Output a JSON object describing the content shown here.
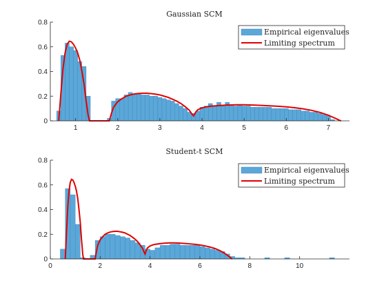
{
  "chart_data": [
    {
      "type": "bar",
      "title": "Gaussian SCM",
      "xlim": [
        0.4,
        7.5
      ],
      "ylim": [
        0,
        0.8
      ],
      "xticks": [
        1,
        2,
        3,
        4,
        5,
        6,
        7
      ],
      "yticks": [
        0,
        0.2,
        0.4,
        0.6,
        0.8
      ],
      "legend": {
        "position": "top-right",
        "entries": [
          "Empirical eigenvalues",
          "Limiting spectrum"
        ]
      },
      "bin_width": 0.1,
      "series": [
        {
          "name": "Empirical eigenvalues",
          "x": [
            0.6,
            0.7,
            0.8,
            0.9,
            1.0,
            1.1,
            1.2,
            1.3,
            1.8,
            1.9,
            2.0,
            2.1,
            2.2,
            2.3,
            2.4,
            2.5,
            2.6,
            2.7,
            2.8,
            2.9,
            3.0,
            3.1,
            3.2,
            3.3,
            3.4,
            3.5,
            3.6,
            3.7,
            3.8,
            3.9,
            4.0,
            4.1,
            4.2,
            4.3,
            4.4,
            4.5,
            4.6,
            4.7,
            4.8,
            4.9,
            5.0,
            5.1,
            5.2,
            5.3,
            5.4,
            5.5,
            5.6,
            5.7,
            5.8,
            5.9,
            6.0,
            6.1,
            6.2,
            6.3,
            6.4,
            6.5,
            6.6,
            6.7,
            6.8,
            6.9,
            7.0,
            7.1
          ],
          "values": [
            0.08,
            0.53,
            0.63,
            0.6,
            0.57,
            0.48,
            0.44,
            0.2,
            0.02,
            0.16,
            0.18,
            0.18,
            0.21,
            0.23,
            0.22,
            0.22,
            0.21,
            0.21,
            0.2,
            0.2,
            0.19,
            0.18,
            0.17,
            0.16,
            0.14,
            0.12,
            0.1,
            0.07,
            0.06,
            0.08,
            0.11,
            0.12,
            0.14,
            0.12,
            0.15,
            0.12,
            0.15,
            0.13,
            0.12,
            0.13,
            0.12,
            0.12,
            0.11,
            0.11,
            0.11,
            0.11,
            0.11,
            0.1,
            0.1,
            0.1,
            0.1,
            0.09,
            0.09,
            0.09,
            0.08,
            0.08,
            0.07,
            0.07,
            0.06,
            0.05,
            0.04,
            0.01
          ]
        },
        {
          "name": "Limiting spectrum",
          "x": [
            0.6,
            0.65,
            0.7,
            0.75,
            0.8,
            0.85,
            0.9,
            0.95,
            1.0,
            1.05,
            1.1,
            1.15,
            1.2,
            1.25,
            1.3,
            1.33,
            1.8,
            1.85,
            1.9,
            2.0,
            2.1,
            2.2,
            2.3,
            2.4,
            2.5,
            2.6,
            2.7,
            2.8,
            2.9,
            3.0,
            3.1,
            3.2,
            3.3,
            3.4,
            3.5,
            3.6,
            3.7,
            3.75,
            3.8,
            3.85,
            3.9,
            4.0,
            4.1,
            4.2,
            4.3,
            4.4,
            4.5,
            4.6,
            4.7,
            4.8,
            4.9,
            5.0,
            5.2,
            5.4,
            5.6,
            5.8,
            6.0,
            6.2,
            6.4,
            6.6,
            6.8,
            7.0,
            7.1,
            7.2,
            7.25,
            7.3
          ],
          "values": [
            0.0,
            0.22,
            0.42,
            0.55,
            0.62,
            0.645,
            0.64,
            0.62,
            0.59,
            0.55,
            0.49,
            0.4,
            0.3,
            0.16,
            0.04,
            0.0,
            0.0,
            0.06,
            0.11,
            0.155,
            0.18,
            0.2,
            0.21,
            0.218,
            0.222,
            0.224,
            0.224,
            0.22,
            0.216,
            0.21,
            0.2,
            0.19,
            0.175,
            0.16,
            0.14,
            0.115,
            0.085,
            0.06,
            0.04,
            0.07,
            0.09,
            0.105,
            0.113,
            0.118,
            0.121,
            0.124,
            0.126,
            0.128,
            0.129,
            0.13,
            0.13,
            0.13,
            0.128,
            0.125,
            0.122,
            0.118,
            0.113,
            0.106,
            0.097,
            0.085,
            0.068,
            0.045,
            0.03,
            0.015,
            0.006,
            0.0
          ]
        }
      ]
    },
    {
      "type": "bar",
      "title": "Student-t SCM",
      "xlim": [
        0,
        12
      ],
      "ylim": [
        0,
        0.8
      ],
      "xticks": [
        0,
        2,
        4,
        6,
        8,
        10
      ],
      "yticks": [
        0,
        0.2,
        0.4,
        0.6,
        0.8
      ],
      "legend": {
        "position": "top-right",
        "entries": [
          "Empirical eigenvalues",
          "Limiting spectrum"
        ]
      },
      "bin_width": 0.2,
      "series": [
        {
          "name": "Empirical eigenvalues",
          "x": [
            0.5,
            0.7,
            0.9,
            1.1,
            1.3,
            1.7,
            1.9,
            2.1,
            2.3,
            2.5,
            2.7,
            2.9,
            3.1,
            3.3,
            3.5,
            3.7,
            3.9,
            4.1,
            4.3,
            4.5,
            4.7,
            4.9,
            5.1,
            5.3,
            5.5,
            5.7,
            5.9,
            6.1,
            6.3,
            6.5,
            6.7,
            6.9,
            7.1,
            7.3,
            7.5,
            7.7,
            8.7,
            9.5,
            11.3
          ],
          "values": [
            0.08,
            0.57,
            0.52,
            0.28,
            0.01,
            0.03,
            0.15,
            0.18,
            0.2,
            0.2,
            0.19,
            0.18,
            0.17,
            0.15,
            0.13,
            0.11,
            0.08,
            0.07,
            0.09,
            0.11,
            0.11,
            0.12,
            0.12,
            0.11,
            0.11,
            0.11,
            0.11,
            0.1,
            0.09,
            0.08,
            0.07,
            0.06,
            0.04,
            0.02,
            0.01,
            0.01,
            0.01,
            0.01,
            0.01
          ]
        },
        {
          "name": "Limiting spectrum",
          "x": [
            0.6,
            0.65,
            0.7,
            0.75,
            0.8,
            0.85,
            0.9,
            0.95,
            1.0,
            1.05,
            1.1,
            1.15,
            1.2,
            1.25,
            1.3,
            1.33,
            1.8,
            1.85,
            1.9,
            2.0,
            2.1,
            2.2,
            2.3,
            2.4,
            2.5,
            2.6,
            2.7,
            2.8,
            2.9,
            3.0,
            3.1,
            3.2,
            3.3,
            3.4,
            3.5,
            3.6,
            3.7,
            3.75,
            3.8,
            3.85,
            3.9,
            4.0,
            4.1,
            4.2,
            4.3,
            4.4,
            4.5,
            4.6,
            4.7,
            4.8,
            4.9,
            5.0,
            5.2,
            5.4,
            5.6,
            5.8,
            6.0,
            6.2,
            6.4,
            6.6,
            6.8,
            7.0,
            7.1,
            7.2,
            7.25,
            7.3
          ],
          "values": [
            0.0,
            0.22,
            0.42,
            0.55,
            0.62,
            0.645,
            0.64,
            0.62,
            0.59,
            0.55,
            0.49,
            0.4,
            0.3,
            0.16,
            0.04,
            0.0,
            0.0,
            0.06,
            0.11,
            0.155,
            0.18,
            0.2,
            0.21,
            0.218,
            0.222,
            0.224,
            0.224,
            0.22,
            0.216,
            0.21,
            0.2,
            0.19,
            0.175,
            0.16,
            0.14,
            0.115,
            0.085,
            0.06,
            0.04,
            0.07,
            0.09,
            0.105,
            0.113,
            0.118,
            0.121,
            0.124,
            0.126,
            0.128,
            0.129,
            0.13,
            0.13,
            0.13,
            0.128,
            0.125,
            0.122,
            0.118,
            0.113,
            0.106,
            0.097,
            0.085,
            0.068,
            0.045,
            0.03,
            0.015,
            0.006,
            0.0
          ]
        }
      ]
    }
  ]
}
